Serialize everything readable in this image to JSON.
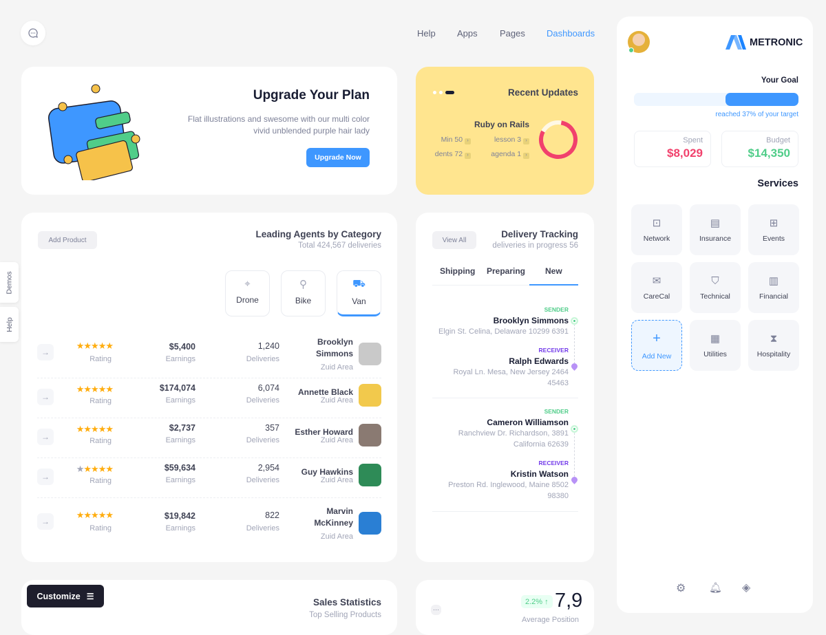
{
  "nav": {
    "items": [
      "Help",
      "Apps",
      "Pages",
      "Dashboards"
    ],
    "active": "Dashboards",
    "accent": "#3e97ff"
  },
  "upgrade": {
    "title": "Upgrade Your Plan",
    "text1": "Flat illustrations and swesome with our multi color",
    "text2": "vivid unblended purple hair lady",
    "button": "Upgrade Now"
  },
  "updates": {
    "title": "Recent Updates",
    "subtitle": "Ruby on Rails",
    "items": [
      "Min 50",
      "lesson 3",
      "dents 72",
      "agenda 1"
    ],
    "bg": "#ffe58f",
    "donut_color": "#f1416c",
    "donut_fraction": 0.8
  },
  "agents": {
    "add_button": "Add Product",
    "title": "Leading Agents by Category",
    "subtitle": "Total 424,567 deliveries",
    "categories": [
      {
        "label": "Drone",
        "icon": "drone-icon"
      },
      {
        "label": "Bike",
        "icon": "bike-icon"
      },
      {
        "label": "Van",
        "icon": "van-icon",
        "active": true
      }
    ],
    "rows": [
      {
        "name": "Brooklyn Simmons",
        "area": "Zuid Area",
        "deliveries": "1,240",
        "deliveries_label": "Deliveries",
        "earnings": "$5,400",
        "earnings_label": "Earnings",
        "rating": 5,
        "rating_label": "Rating",
        "avatar": "#c9c9c9"
      },
      {
        "name": "Annette Black",
        "area": "Zuid Area",
        "deliveries": "6,074",
        "deliveries_label": "Deliveries",
        "earnings": "$174,074",
        "earnings_label": "Earnings",
        "rating": 5,
        "rating_label": "Rating",
        "avatar": "#f2c94c"
      },
      {
        "name": "Esther Howard",
        "area": "Zuid Area",
        "deliveries": "357",
        "deliveries_label": "Deliveries",
        "earnings": "$2,737",
        "earnings_label": "Earnings",
        "rating": 5,
        "rating_label": "Rating",
        "avatar": "#8a7a72"
      },
      {
        "name": "Guy Hawkins",
        "area": "Zuid Area",
        "deliveries": "2,954",
        "deliveries_label": "Deliveries",
        "earnings": "$59,634",
        "earnings_label": "Earnings",
        "rating": 4,
        "rating_label": "Rating",
        "avatar": "#2e8b57"
      },
      {
        "name": "Marvin McKinney",
        "area": "Zuid Area",
        "deliveries": "822",
        "deliveries_label": "Deliveries",
        "earnings": "$19,842",
        "earnings_label": "Earnings",
        "rating": 5,
        "rating_label": "Rating",
        "avatar": "#2a7fd4"
      }
    ]
  },
  "delivery": {
    "view_all": "View All",
    "title": "Delivery Tracking",
    "subtitle": "deliveries in progress 56",
    "tabs": [
      "Shipping",
      "Preparing",
      "New"
    ],
    "active_tab": "New",
    "groups": [
      {
        "sender_label": "SENDER",
        "sender": "Brooklyn Simmons",
        "sender_addr": "Elgin St. Celina, Delaware 10299 6391",
        "receiver_label": "RECEIVER",
        "receiver": "Ralph Edwards",
        "receiver_addr": "Royal Ln. Mesa, New Jersey 2464 45463"
      },
      {
        "sender_label": "SENDER",
        "sender": "Cameron Williamson",
        "sender_addr": "Ranchview Dr. Richardson, 3891 California 62639",
        "receiver_label": "RECEIVER",
        "receiver": "Kristin Watson",
        "receiver_addr": "Preston Rd. Inglewood, Maine 8502 98380"
      }
    ]
  },
  "sales": {
    "title": "Sales Statistics",
    "subtitle": "Top Selling Products"
  },
  "position": {
    "badge": "2.2%",
    "value": "7,9",
    "label": "Average Position"
  },
  "customize": "Customize",
  "side_tabs": [
    "Demos",
    "Help"
  ],
  "panel": {
    "brand": "METRONIC",
    "goal_title": "Your Goal",
    "goal_text": "reached 37% of your target",
    "goal_fraction": 0.37,
    "spent_label": "Spent",
    "spent": "$8,029",
    "budget_label": "Budget",
    "budget": "$14,350",
    "services_title": "Services",
    "services": [
      {
        "label": "Network",
        "icon": "network-icon"
      },
      {
        "label": "Insurance",
        "icon": "insurance-icon"
      },
      {
        "label": "Events",
        "icon": "events-icon"
      },
      {
        "label": "CareCal",
        "icon": "carecal-icon"
      },
      {
        "label": "Technical",
        "icon": "shield-icon"
      },
      {
        "label": "Financial",
        "icon": "chart-icon"
      },
      {
        "label": "Add New",
        "icon": "plus-icon"
      },
      {
        "label": "Utilities",
        "icon": "utilities-icon"
      },
      {
        "label": "Hospitality",
        "icon": "hourglass-icon"
      }
    ]
  }
}
